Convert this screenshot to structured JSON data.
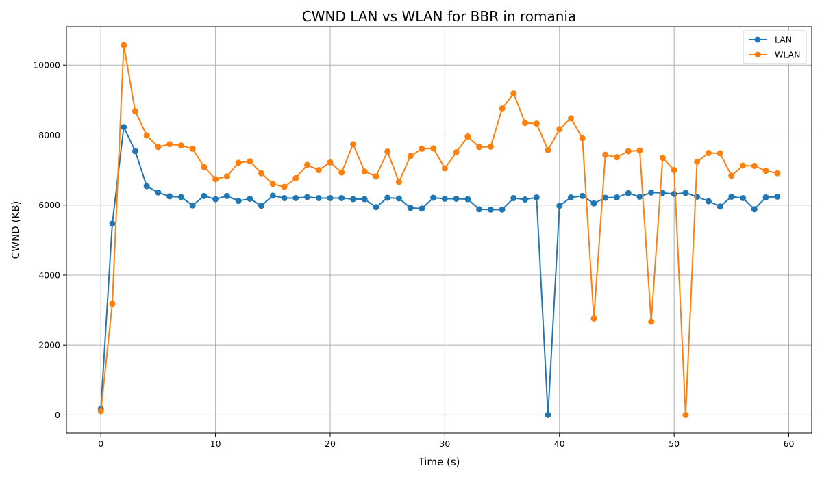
{
  "chart_data": {
    "type": "line",
    "title": "CWND LAN vs WLAN for BBR in romania",
    "xlabel": "Time (s)",
    "ylabel": "CWND (KB)",
    "xlim": [
      -3,
      62
    ],
    "ylim": [
      -520,
      11100
    ],
    "xticks": [
      0,
      10,
      20,
      30,
      40,
      50,
      60
    ],
    "yticks": [
      0,
      2000,
      4000,
      6000,
      8000,
      10000
    ],
    "grid": true,
    "legend_position": "top-right",
    "x": [
      0,
      1,
      2,
      3,
      4,
      5,
      6,
      7,
      8,
      9,
      10,
      11,
      12,
      13,
      14,
      15,
      16,
      17,
      18,
      19,
      20,
      21,
      22,
      23,
      24,
      25,
      26,
      27,
      28,
      29,
      30,
      31,
      32,
      33,
      34,
      35,
      36,
      37,
      38,
      39,
      40,
      41,
      42,
      43,
      44,
      45,
      46,
      47,
      48,
      49,
      50,
      51,
      52,
      53,
      54,
      55,
      56,
      57,
      58,
      59
    ],
    "series": [
      {
        "name": "LAN",
        "color": "#1f77b4",
        "values": [
          170,
          5470,
          8230,
          7540,
          6540,
          6360,
          6250,
          6230,
          5990,
          6260,
          6170,
          6260,
          6120,
          6180,
          5980,
          6270,
          6200,
          6200,
          6230,
          6200,
          6200,
          6200,
          6170,
          6170,
          5940,
          6210,
          6190,
          5920,
          5900,
          6210,
          6180,
          6180,
          6170,
          5880,
          5870,
          5870,
          6200,
          6160,
          6220,
          0,
          5980,
          6220,
          6260,
          6050,
          6210,
          6220,
          6340,
          6240,
          6360,
          6350,
          6320,
          6350,
          6240,
          6110,
          5960,
          6240,
          6200,
          5880,
          6220,
          6240
        ]
      },
      {
        "name": "WLAN",
        "color": "#ff7f0e",
        "values": [
          110,
          3180,
          10570,
          8680,
          7990,
          7660,
          7740,
          7700,
          7610,
          7090,
          6740,
          6820,
          7210,
          7250,
          6910,
          6600,
          6520,
          6770,
          7150,
          7000,
          7220,
          6930,
          7740,
          6960,
          6820,
          7530,
          6660,
          7400,
          7610,
          7620,
          7050,
          7510,
          7960,
          7660,
          7670,
          8760,
          9190,
          8350,
          8330,
          7570,
          8170,
          8480,
          7910,
          2760,
          7440,
          7370,
          7540,
          7560,
          2670,
          7350,
          7000,
          0,
          7240,
          7490,
          7480,
          6840,
          7130,
          7120,
          6980,
          6910
        ]
      }
    ]
  }
}
